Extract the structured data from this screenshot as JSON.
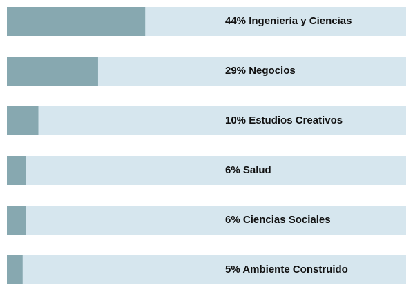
{
  "chart_data": {
    "type": "bar",
    "orientation": "horizontal",
    "categories": [
      "Ingeniería y Ciencias",
      "Negocios",
      "Estudios Creativos",
      "Salud",
      "Ciencias Sociales",
      "Ambiente Construido"
    ],
    "values": [
      44,
      29,
      10,
      6,
      6,
      5
    ],
    "value_labels": [
      "44%",
      "29%",
      "10%",
      "6%",
      "6%",
      "5%"
    ],
    "color": "#87a8b0",
    "track_color": "#d6e6ee"
  }
}
